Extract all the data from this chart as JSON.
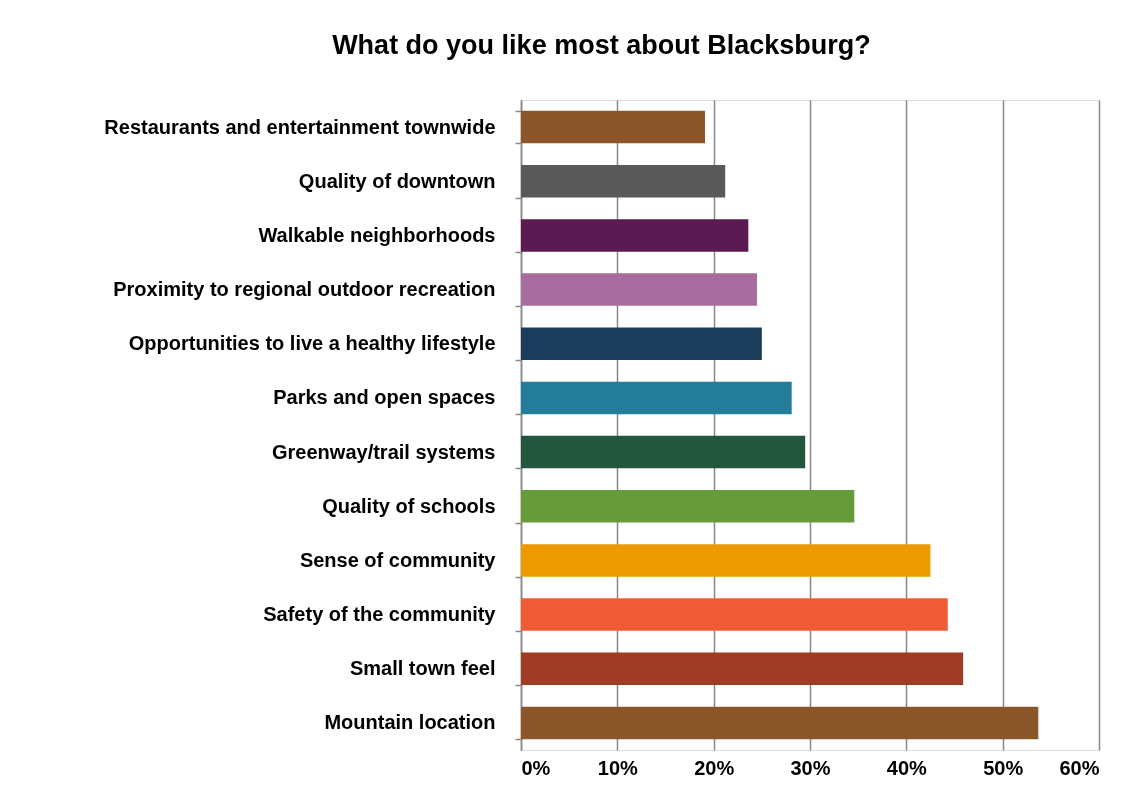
{
  "chart_data": {
    "type": "bar",
    "orientation": "horizontal",
    "title": "What do you like most about Blacksburg?",
    "categories": [
      "Restaurants and entertainment townwide",
      "Quality of downtown",
      "Walkable neighborhoods",
      "Proximity to regional outdoor recreation",
      "Opportunities to live a healthy lifestyle",
      "Parks and open spaces",
      "Greenway/trail systems",
      "Quality of schools",
      "Sense of community",
      "Safety of the community",
      "Small town feel",
      "Mountain location"
    ],
    "values": [
      19.1,
      21.2,
      23.6,
      24.5,
      25.0,
      28.1,
      29.5,
      34.6,
      42.5,
      44.3,
      45.9,
      53.7
    ],
    "colors": [
      "#8b572a",
      "#595959",
      "#5c1a52",
      "#a66d9e",
      "#1b3c5a",
      "#237d9a",
      "#24553f",
      "#679b3a",
      "#ec9a00",
      "#f05a35",
      "#a03b26",
      "#8b572a"
    ],
    "xlim": [
      0,
      60
    ],
    "xticks": [
      {
        "value": 0,
        "label": "0%"
      },
      {
        "value": 10,
        "label": "10%"
      },
      {
        "value": 20,
        "label": "20%"
      },
      {
        "value": 30,
        "label": "30%"
      },
      {
        "value": 40,
        "label": "40%"
      },
      {
        "value": 50,
        "label": "50%"
      },
      {
        "value": 60,
        "label": "60%"
      }
    ],
    "grid": "x",
    "legend": false
  }
}
